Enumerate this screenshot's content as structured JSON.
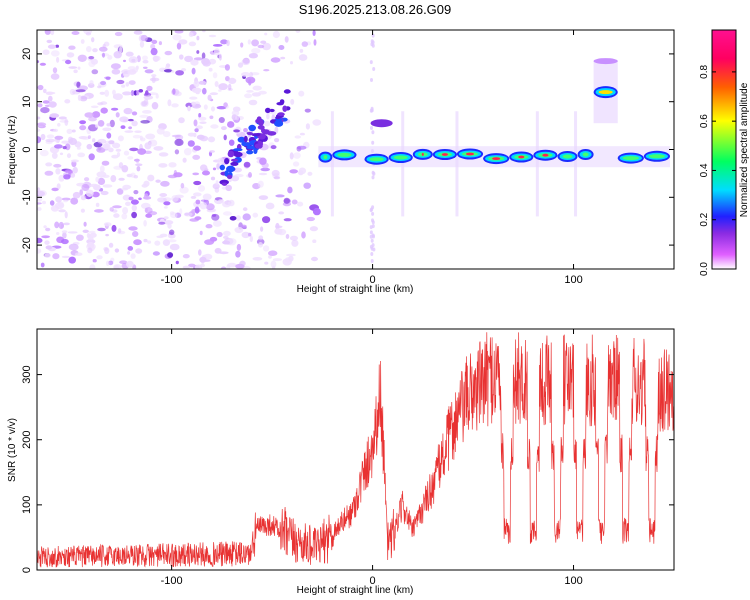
{
  "figure": {
    "title": "S196.2025.213.08.26.G09"
  },
  "chart_data": [
    {
      "type": "heatmap",
      "name": "spectrogram",
      "xlabel": "Height of straight line (km)",
      "ylabel": "Frequency (Hz)",
      "xlim": [
        -167,
        150
      ],
      "ylim": [
        -25,
        25
      ],
      "xticks": [
        -100,
        0,
        100
      ],
      "yticks": [
        -20,
        -10,
        0,
        10,
        20
      ],
      "colorbar": {
        "label": "Normalized spectral amplitude",
        "range": [
          0,
          0.97
        ],
        "ticks": [
          0.0,
          0.2,
          0.4,
          0.6,
          0.8
        ],
        "tick_labels": [
          "0.0",
          "0.2",
          "0.4",
          "0.6",
          "0.8"
        ],
        "colors": [
          "#ffffff",
          "#e060ff",
          "#8a2be2",
          "#2020ff",
          "#00ddff",
          "#00ff60",
          "#ffff00",
          "#ff6000",
          "#ff0060",
          "#ff1090"
        ]
      },
      "noise_region_x": [
        -167,
        -27
      ],
      "rising_track": {
        "x": [
          -75,
          -42
        ],
        "frequency": [
          -5,
          10
        ]
      },
      "carrier_track": {
        "x": [
          -27,
          148
        ],
        "frequency": -1.5
      },
      "upper_segment": {
        "x": [
          -1,
          10
        ],
        "frequency": 5.5
      },
      "high_segment": {
        "x": [
          110,
          122
        ],
        "frequency": 12
      },
      "high_segment_top": {
        "x": [
          110,
          122
        ],
        "frequency": 18.5
      }
    },
    {
      "type": "line",
      "name": "snr",
      "xlabel": "Height of straight line (km)",
      "ylabel": "SNR (10 * v/v)",
      "xlim": [
        -167,
        150
      ],
      "ylim": [
        0,
        370
      ],
      "xticks": [
        -100,
        0,
        100
      ],
      "yticks": [
        0,
        100,
        200,
        300
      ],
      "line_color": "#e83232",
      "envelope": {
        "x": [
          -167,
          -60,
          -58,
          -50,
          -40,
          -27,
          -10,
          0,
          4,
          8,
          15,
          20,
          30,
          40,
          48,
          60,
          80,
          100,
          120,
          150
        ],
        "y": [
          20,
          25,
          65,
          70,
          45,
          35,
          90,
          190,
          270,
          30,
          100,
          60,
          130,
          220,
          270,
          300,
          290,
          290,
          290,
          280
        ]
      },
      "dips_x": [
        67,
        80,
        92,
        103,
        114,
        126,
        139
      ]
    }
  ]
}
